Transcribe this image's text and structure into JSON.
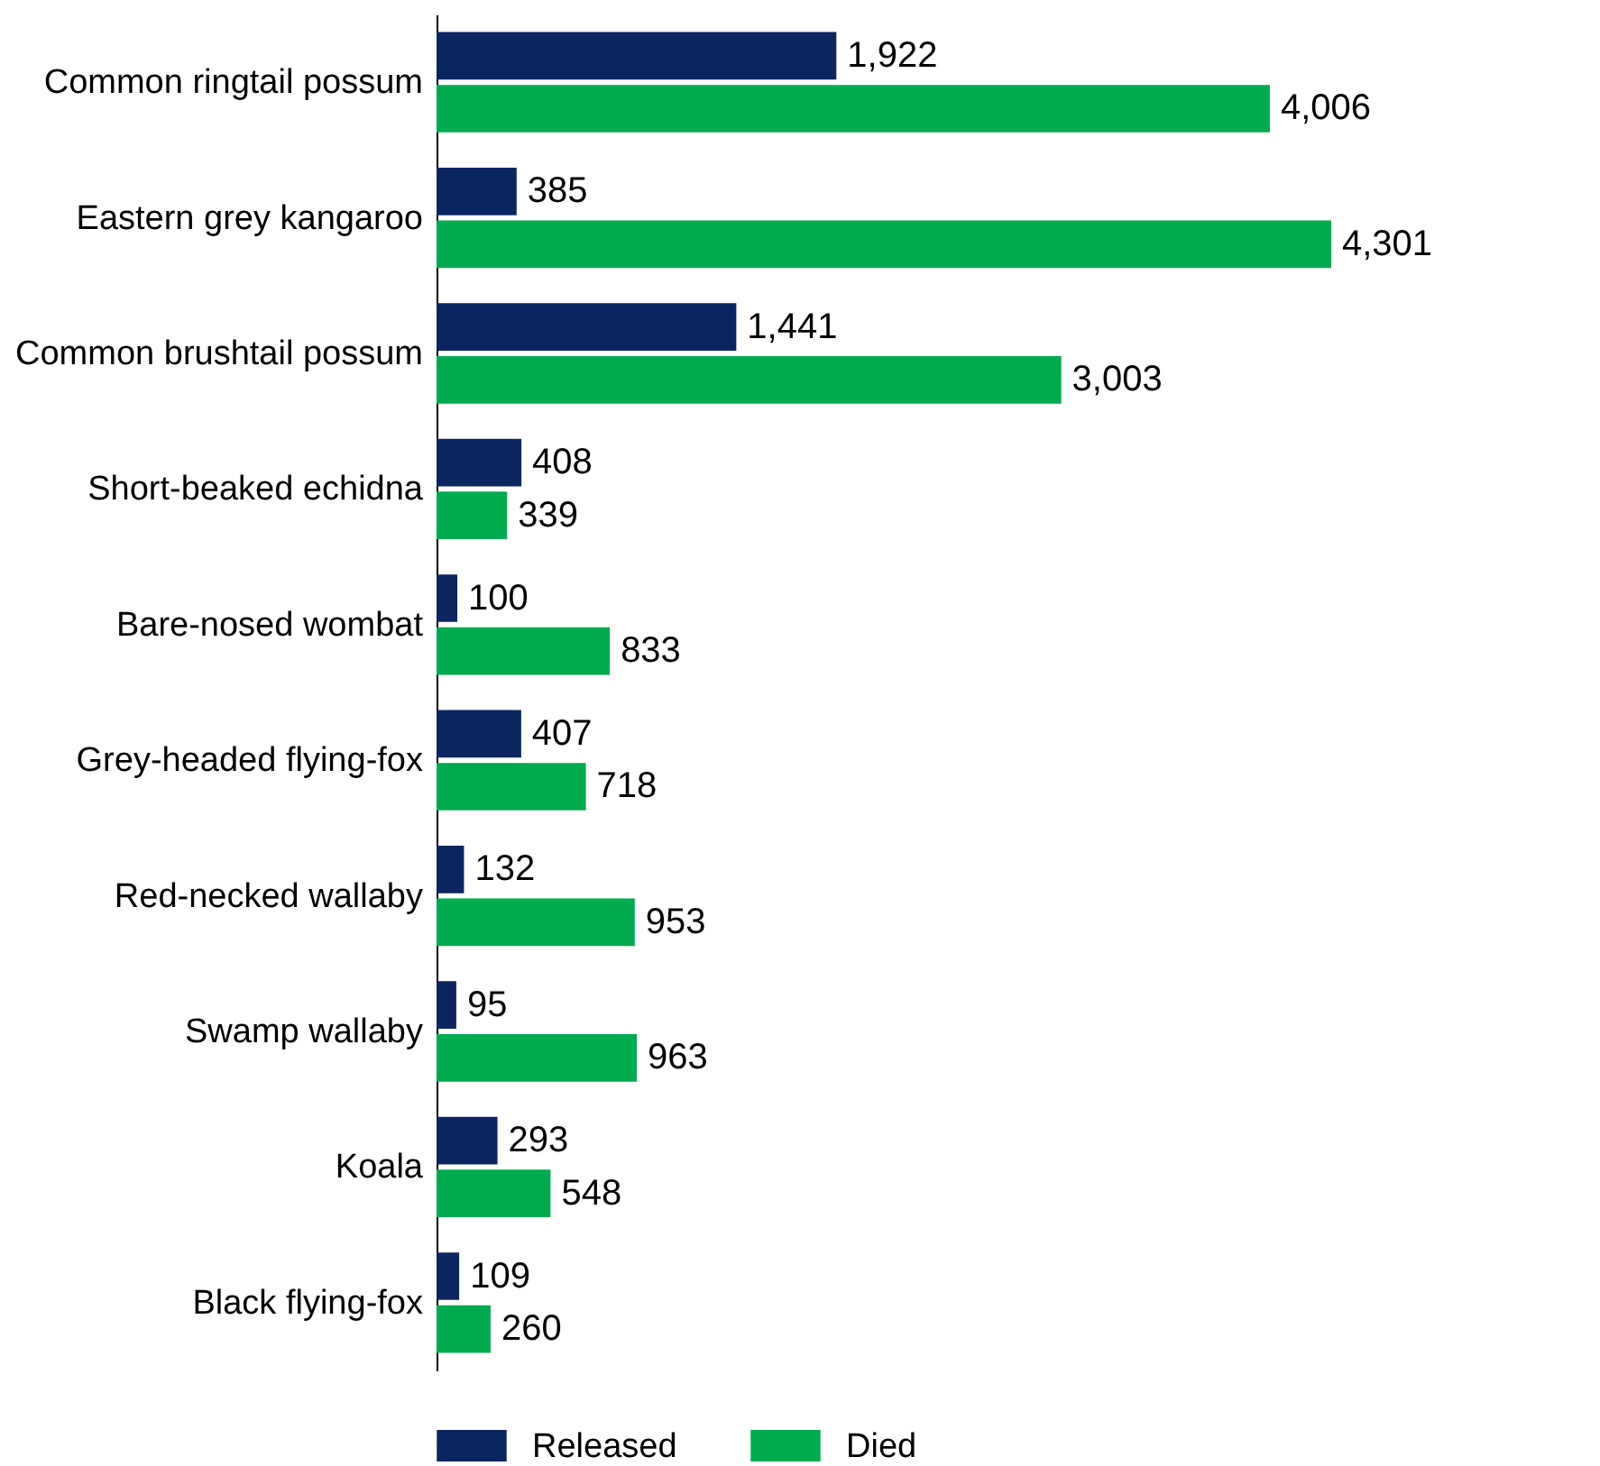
{
  "chart_data": {
    "type": "bar",
    "orientation": "horizontal",
    "categories": [
      "Common ringtail possum",
      "Eastern grey kangaroo",
      "Common brushtail possum",
      "Short-beaked echidna",
      "Bare-nosed wombat",
      "Grey-headed flying-fox",
      "Red-necked wallaby",
      "Swamp wallaby",
      "Koala",
      "Black flying-fox"
    ],
    "series": [
      {
        "name": "Released",
        "color": "#0b2560",
        "values": [
          1922,
          385,
          1441,
          408,
          100,
          407,
          132,
          95,
          293,
          109
        ],
        "value_labels": [
          "1,922",
          "385",
          "1,441",
          "408",
          "100",
          "407",
          "132",
          "95",
          "293",
          "109"
        ]
      },
      {
        "name": "Died",
        "color": "#00ab4e",
        "values": [
          4006,
          4301,
          3003,
          339,
          833,
          718,
          953,
          963,
          548,
          260
        ],
        "value_labels": [
          "4,006",
          "4,301",
          "3,003",
          "339",
          "833",
          "718",
          "953",
          "963",
          "548",
          "260"
        ]
      }
    ],
    "legend": "bottom",
    "grid": false
  }
}
